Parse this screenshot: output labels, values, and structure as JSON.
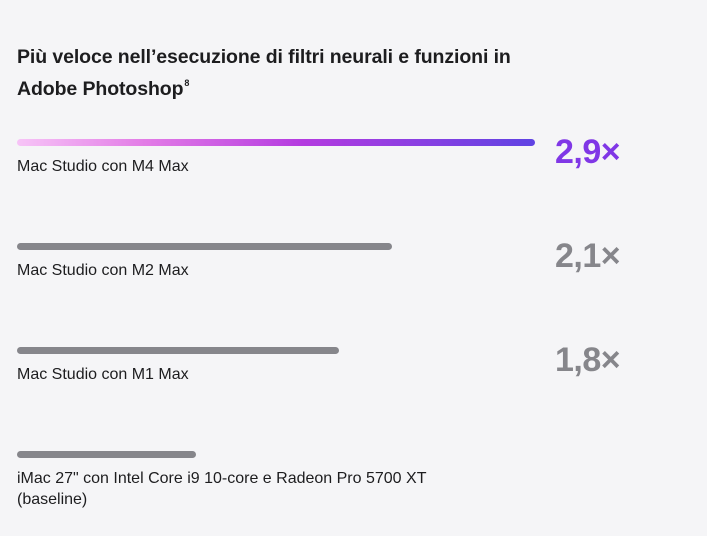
{
  "chart_data": {
    "type": "bar",
    "orientation": "horizontal",
    "title": "Più veloce nell’esecuzione di filtri neurali e funzioni in Adobe Photoshop",
    "title_footnote": "8",
    "categories": [
      "Mac Studio con M4 Max",
      "Mac Studio con M2 Max",
      "Mac Studio con M1 Max",
      "iMac 27\" con Intel Core i9 10-core e Radeon Pro 5700 XT (baseline)"
    ],
    "values": [
      2.9,
      2.1,
      1.8,
      1.0
    ],
    "value_labels": [
      "2,9×",
      "2,1×",
      "1,8×",
      ""
    ],
    "highlight_index": 0,
    "colors": {
      "highlight_gradient": [
        "#f7c4f7",
        "#e27be6",
        "#b43be0",
        "#5f43e3"
      ],
      "highlight_value": "#8037e6",
      "default_bar": "#86868b",
      "default_value": "#86868b"
    },
    "grid": false,
    "legend": "none"
  }
}
